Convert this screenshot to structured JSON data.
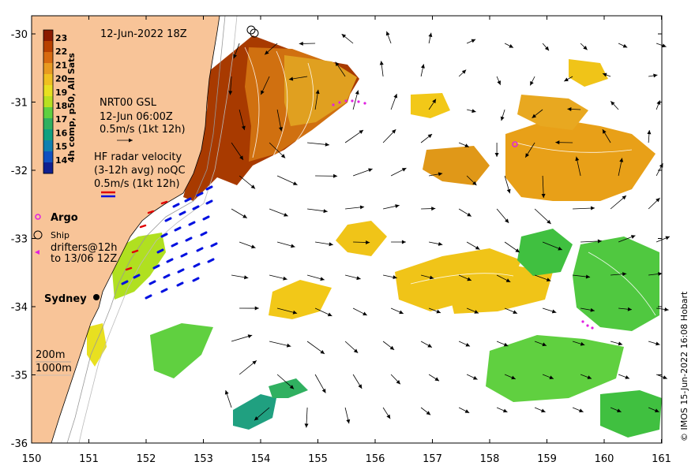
{
  "map": {
    "date_label": "12-Jun-2022 18Z",
    "x_ticks": [
      "150",
      "151",
      "152",
      "153",
      "154",
      "155",
      "156",
      "157",
      "158",
      "159",
      "160",
      "161"
    ],
    "y_ticks": [
      "-30",
      "-31",
      "-32",
      "-33",
      "-34",
      "-35",
      "-36"
    ],
    "copyright": "© IMOS 15-Jun-2022 16:08 Hobart",
    "city_label": "Sydney"
  },
  "colorbar": {
    "title": "4h comp, p50, All Sats",
    "ticks": [
      "23",
      "22",
      "21",
      "20",
      "19",
      "18",
      "17",
      "16",
      "15",
      "14"
    ],
    "colors": [
      "#8b1a00",
      "#b84000",
      "#d86a10",
      "#e89a20",
      "#f0c020",
      "#e8e020",
      "#b8e020",
      "#60d040",
      "#30b060",
      "#10a080",
      "#1080b0",
      "#1050c0",
      "#102090"
    ]
  },
  "legend": {
    "gsl": [
      "NRT00 GSL",
      "12-Jun 06:00Z",
      "0.5m/s (1kt 12h)"
    ],
    "hf": [
      "HF radar velocity",
      "(3-12h avg) noQC",
      "0.5m/s (1kt 12h)"
    ],
    "argo": "Argo",
    "ship": "Ship",
    "drifters": [
      "drifters@12h",
      "to 13/06 12Z"
    ],
    "isobaths": [
      "200m",
      "1000m"
    ]
  },
  "colors": {
    "land": "#f8c498",
    "sst_hot": "#a83a00",
    "sst_warm": "#e0a020",
    "sst_mid": "#f0c418",
    "sst_green": "#40c040",
    "sst_teal": "#20a080",
    "hf_blue": "#0010e0",
    "hf_red": "#e00000",
    "argo": "#e020e0"
  }
}
